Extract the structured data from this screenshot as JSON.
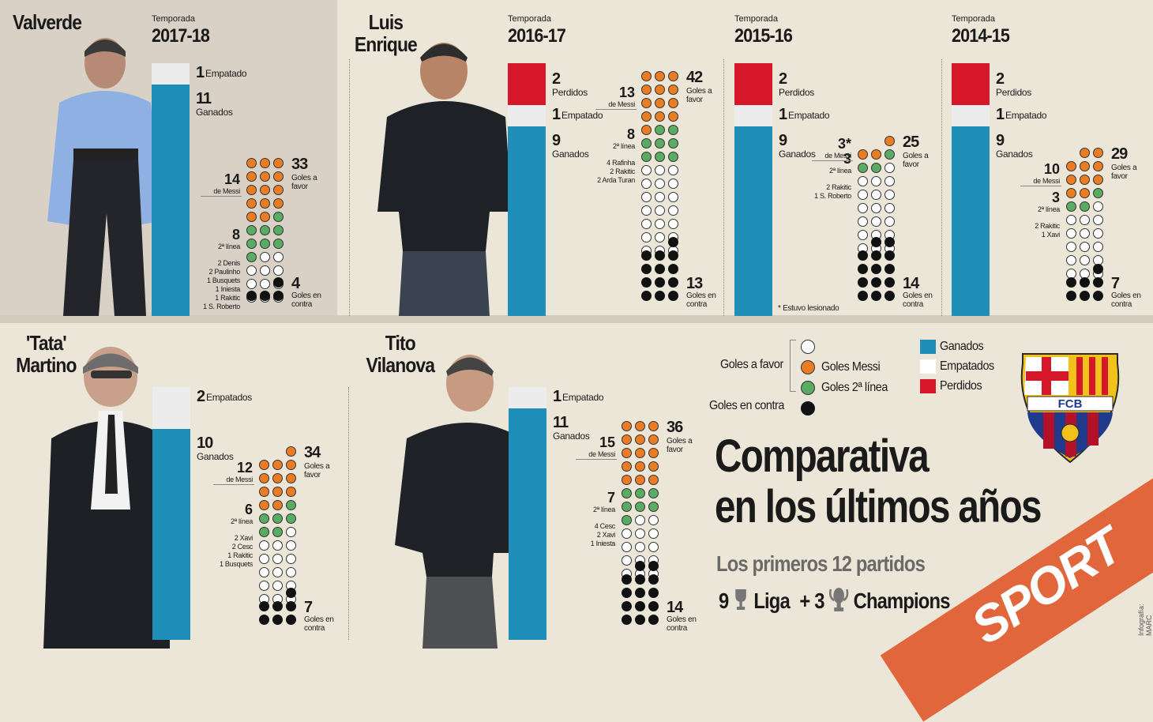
{
  "legend": {
    "goles_a_favor_label": "Goles a favor",
    "goles_messi_label": "Goles Messi",
    "goles_2a_linea_label": "Goles 2ª línea",
    "goles_en_contra_label": "Goles en contra",
    "ganados_label": "Ganados",
    "empatados_label": "Empatados",
    "perdidos_label": "Perdidos"
  },
  "colors": {
    "ganados": "#1f8fb9",
    "empatados": "#ececec",
    "perdidos": "#d6172a",
    "messi": "#ea7d23",
    "segunda_linea": "#5aab63",
    "favor_otros": "#ffffff",
    "contra": "#111111",
    "banner": "#e2663c",
    "panel_top_left": "#d9d1c5",
    "panel_bg": "#ece6d8"
  },
  "title": {
    "line1": "Comparativa",
    "line2": "en los últimos años",
    "subtitle": "Los primeros 12 partidos",
    "liga_count": "9",
    "liga_label": "Liga",
    "plus": "+ 3",
    "champions_label": "Champions"
  },
  "brand": {
    "sport": "SPORT",
    "credit": "Infografía: MARC CREUS",
    "fcb": "FCB"
  },
  "chart_data": [
    {
      "type": "bar",
      "coach": "Valverde",
      "season_label": "Temporada",
      "season": "2017-18",
      "ganados": 11,
      "empatados": 1,
      "perdidos": 0,
      "ganados_label": "Ganados",
      "empatados_label": "Empatado",
      "goles_a_favor": 33,
      "goles_a_favor_label": "Goles a favor",
      "goles_messi": 14,
      "goles_messi_label": "de Messi",
      "goles_2a_linea": 8,
      "goles_2a_linea_label": "2ª línea",
      "otros": [
        "2 Denis",
        "2 Paulinho",
        "1 Busquets",
        "1 Iniesta",
        "1 Rakitic",
        "1 S. Roberto"
      ],
      "goles_en_contra": 4,
      "goles_en_contra_label": "Goles en contra"
    },
    {
      "type": "bar",
      "coach": "Luis Enrique",
      "season_label": "Temporada",
      "season": "2016-17",
      "ganados": 9,
      "empatados": 1,
      "perdidos": 2,
      "ganados_label": "Ganados",
      "empatados_label": "Empatado",
      "perdidos_label": "Perdidos",
      "goles_a_favor": 42,
      "goles_a_favor_label": "Goles a favor",
      "goles_messi": 13,
      "goles_messi_label": "de Messi",
      "goles_2a_linea": 8,
      "goles_2a_linea_label": "2ª línea",
      "otros": [
        "4 Rafinha",
        "2 Rakitic",
        "2 Arda Turan"
      ],
      "goles_en_contra": 13,
      "goles_en_contra_label": "Goles en contra"
    },
    {
      "type": "bar",
      "coach": "Luis Enrique",
      "season_label": "Temporada",
      "season": "2015-16",
      "ganados": 9,
      "empatados": 1,
      "perdidos": 2,
      "ganados_label": "Ganados",
      "empatados_label": "Empatado",
      "perdidos_label": "Perdidos",
      "goles_a_favor": 25,
      "goles_a_favor_label": "Goles a favor",
      "goles_messi": "3*",
      "goles_messi_label": "de Messi",
      "goles_2a_linea": 3,
      "goles_2a_linea_label": "2ª línea",
      "otros": [
        "2 Rakitic",
        "1 S. Roberto"
      ],
      "goles_en_contra": 14,
      "goles_en_contra_label": "Goles en contra",
      "note": "* Estuvo lesionado"
    },
    {
      "type": "bar",
      "coach": "Luis Enrique",
      "season_label": "Temporada",
      "season": "2014-15",
      "ganados": 9,
      "empatados": 1,
      "perdidos": 2,
      "ganados_label": "Ganados",
      "empatados_label": "Empatado",
      "perdidos_label": "Perdidos",
      "goles_a_favor": 29,
      "goles_a_favor_label": "Goles a favor",
      "goles_messi": 10,
      "goles_messi_label": "de Messi",
      "goles_2a_linea": 3,
      "goles_2a_linea_label": "2ª línea",
      "otros": [
        "2 Rakitic",
        "1 Xavi"
      ],
      "goles_en_contra": 7,
      "goles_en_contra_label": "Goles en contra"
    },
    {
      "type": "bar",
      "coach": "'Tata' Martino",
      "ganados": 10,
      "empatados": 2,
      "perdidos": 0,
      "ganados_label": "Ganados",
      "empatados_label": "Empatados",
      "goles_a_favor": 34,
      "goles_a_favor_label": "Goles a favor",
      "goles_messi": 12,
      "goles_messi_label": "de Messi",
      "goles_2a_linea": 6,
      "goles_2a_linea_label": "2ª línea",
      "otros": [
        "2 Xavi",
        "2 Cesc",
        "1 Rakitic",
        "1 Busquets"
      ],
      "goles_en_contra": 7,
      "goles_en_contra_label": "Goles en contra"
    },
    {
      "type": "bar",
      "coach": "Tito Vilanova",
      "ganados": 11,
      "empatados": 1,
      "perdidos": 0,
      "ganados_label": "Ganados",
      "empatados_label": "Empatado",
      "goles_a_favor": 36,
      "goles_a_favor_label": "Goles a favor",
      "goles_messi": 15,
      "goles_messi_label": "de Messi",
      "goles_2a_linea": 7,
      "goles_2a_linea_label": "2ª línea",
      "otros": [
        "4 Cesc",
        "2 Xavi",
        "1 Iniesta"
      ],
      "goles_en_contra": 14,
      "goles_en_contra_label": "Goles en contra"
    }
  ]
}
